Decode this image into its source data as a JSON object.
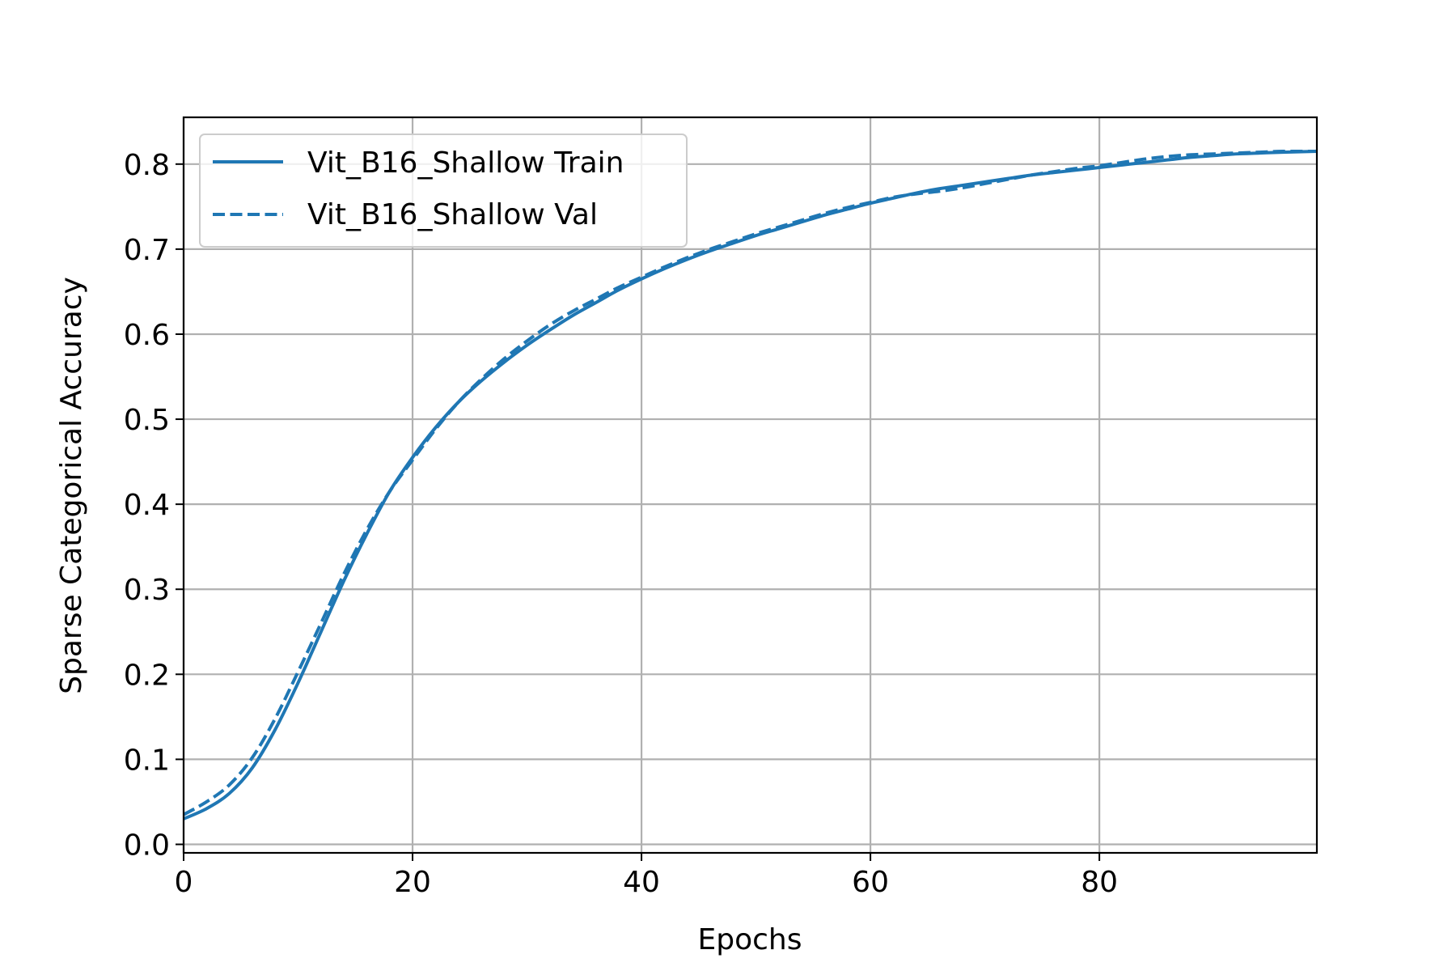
{
  "chart_data": {
    "type": "line",
    "title": "",
    "xlabel": "Epochs",
    "ylabel": "Sparse Categorical Accuracy",
    "xlim": [
      0,
      99
    ],
    "ylim": [
      -0.01,
      0.855
    ],
    "xticks": [
      0,
      20,
      40,
      60,
      80
    ],
    "yticks": [
      0.0,
      0.1,
      0.2,
      0.3,
      0.4,
      0.5,
      0.6,
      0.7,
      0.8
    ],
    "xtick_labels": [
      "0",
      "20",
      "40",
      "60",
      "80"
    ],
    "ytick_labels": [
      "0.0",
      "0.1",
      "0.2",
      "0.3",
      "0.4",
      "0.5",
      "0.6",
      "0.7",
      "0.8"
    ],
    "grid": true,
    "legend_position": "top-left",
    "series": [
      {
        "name": "Vit_B16_Shallow Train",
        "style": "solid",
        "color": "#1f77b4",
        "x": [
          0,
          2,
          4,
          6,
          8,
          10,
          12,
          14,
          16,
          18,
          20,
          22,
          24,
          26,
          28,
          30,
          32,
          34,
          36,
          38,
          40,
          42,
          44,
          46,
          48,
          50,
          52,
          54,
          56,
          58,
          60,
          62,
          64,
          66,
          68,
          70,
          72,
          74,
          76,
          78,
          80,
          82,
          84,
          86,
          88,
          90,
          92,
          94,
          96,
          99
        ],
        "y": [
          0.03,
          0.042,
          0.06,
          0.09,
          0.135,
          0.19,
          0.25,
          0.31,
          0.365,
          0.415,
          0.455,
          0.49,
          0.52,
          0.545,
          0.567,
          0.587,
          0.605,
          0.622,
          0.637,
          0.652,
          0.665,
          0.677,
          0.688,
          0.698,
          0.707,
          0.716,
          0.724,
          0.732,
          0.74,
          0.747,
          0.754,
          0.76,
          0.766,
          0.771,
          0.775,
          0.779,
          0.783,
          0.787,
          0.79,
          0.793,
          0.796,
          0.799,
          0.802,
          0.805,
          0.808,
          0.81,
          0.812,
          0.813,
          0.814,
          0.815
        ]
      },
      {
        "name": "Vit_B16_Shallow Val",
        "style": "dashed",
        "color": "#1f77b4",
        "x": [
          0,
          2,
          4,
          6,
          8,
          10,
          12,
          14,
          16,
          18,
          20,
          22,
          24,
          26,
          28,
          30,
          32,
          34,
          36,
          38,
          40,
          42,
          44,
          46,
          48,
          50,
          52,
          54,
          56,
          58,
          60,
          62,
          64,
          66,
          68,
          70,
          72,
          74,
          76,
          78,
          80,
          82,
          84,
          86,
          88,
          90,
          92,
          94,
          96,
          99
        ],
        "y": [
          0.035,
          0.05,
          0.07,
          0.102,
          0.148,
          0.203,
          0.26,
          0.318,
          0.37,
          0.415,
          0.452,
          0.488,
          0.52,
          0.547,
          0.571,
          0.592,
          0.611,
          0.627,
          0.641,
          0.655,
          0.667,
          0.679,
          0.69,
          0.7,
          0.709,
          0.718,
          0.726,
          0.734,
          0.742,
          0.749,
          0.755,
          0.761,
          0.765,
          0.768,
          0.772,
          0.777,
          0.782,
          0.787,
          0.791,
          0.795,
          0.798,
          0.802,
          0.806,
          0.809,
          0.811,
          0.812,
          0.813,
          0.814,
          0.815,
          0.815
        ]
      }
    ]
  }
}
